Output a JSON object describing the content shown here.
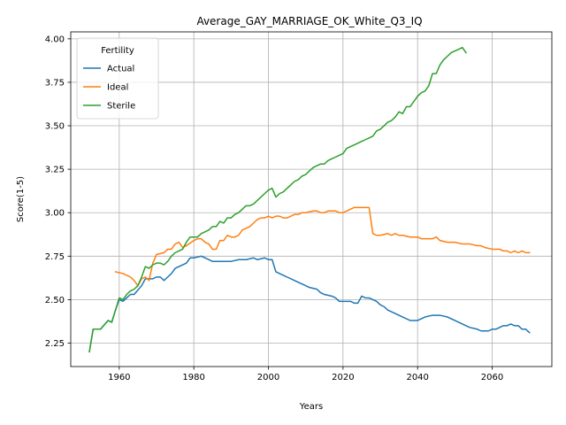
{
  "chart_data": {
    "type": "line",
    "title": "Average_GAY_MARRIAGE_OK_White_Q3_IQ",
    "xlabel": "Years",
    "ylabel": "Score(1-5)",
    "xlim": [
      1947,
      2076
    ],
    "ylim": [
      2.115,
      4.04
    ],
    "xticks": [
      1960,
      1980,
      2000,
      2020,
      2040,
      2060
    ],
    "yticks": [
      2.25,
      2.5,
      2.75,
      3.0,
      3.25,
      3.5,
      3.75,
      4.0
    ],
    "xtick_labels": [
      "1960",
      "1980",
      "2000",
      "2020",
      "2040",
      "2060"
    ],
    "ytick_labels": [
      "2.25",
      "2.50",
      "2.75",
      "3.00",
      "3.25",
      "3.50",
      "3.75",
      "4.00"
    ],
    "grid": true,
    "legend": {
      "title": "Fertility",
      "placement": "top-left"
    },
    "series": [
      {
        "name": "Actual",
        "color": "#1f77b4",
        "points": [
          [
            1952,
            2.2
          ],
          [
            1953,
            2.33
          ],
          [
            1955,
            2.33
          ],
          [
            1957,
            2.38
          ],
          [
            1958,
            2.37
          ],
          [
            1959,
            2.44
          ],
          [
            1960,
            2.5
          ],
          [
            1961,
            2.49
          ],
          [
            1962,
            2.51
          ],
          [
            1963,
            2.53
          ],
          [
            1964,
            2.53
          ],
          [
            1966,
            2.58
          ],
          [
            1967,
            2.62
          ],
          [
            1968,
            2.62
          ],
          [
            1969,
            2.62
          ],
          [
            1970,
            2.63
          ],
          [
            1971,
            2.63
          ],
          [
            1972,
            2.61
          ],
          [
            1973,
            2.63
          ],
          [
            1974,
            2.65
          ],
          [
            1975,
            2.68
          ],
          [
            1976,
            2.69
          ],
          [
            1978,
            2.71
          ],
          [
            1979,
            2.74
          ],
          [
            1980,
            2.74
          ],
          [
            1982,
            2.75
          ],
          [
            1984,
            2.73
          ],
          [
            1985,
            2.72
          ],
          [
            1987,
            2.72
          ],
          [
            1989,
            2.72
          ],
          [
            1990,
            2.72
          ],
          [
            1992,
            2.73
          ],
          [
            1994,
            2.73
          ],
          [
            1996,
            2.74
          ],
          [
            1997,
            2.73
          ],
          [
            1999,
            2.74
          ],
          [
            2000,
            2.73
          ],
          [
            2001,
            2.73
          ],
          [
            2002,
            2.66
          ],
          [
            2003,
            2.65
          ],
          [
            2004,
            2.64
          ],
          [
            2005,
            2.63
          ],
          [
            2007,
            2.61
          ],
          [
            2008,
            2.6
          ],
          [
            2009,
            2.59
          ],
          [
            2011,
            2.57
          ],
          [
            2013,
            2.56
          ],
          [
            2014,
            2.54
          ],
          [
            2015,
            2.53
          ],
          [
            2017,
            2.52
          ],
          [
            2018,
            2.51
          ],
          [
            2019,
            2.49
          ],
          [
            2021,
            2.49
          ],
          [
            2022,
            2.49
          ],
          [
            2023,
            2.48
          ],
          [
            2024,
            2.48
          ],
          [
            2025,
            2.52
          ],
          [
            2026,
            2.51
          ],
          [
            2027,
            2.51
          ],
          [
            2029,
            2.49
          ],
          [
            2030,
            2.47
          ],
          [
            2031,
            2.46
          ],
          [
            2032,
            2.44
          ],
          [
            2034,
            2.42
          ],
          [
            2035,
            2.41
          ],
          [
            2036,
            2.4
          ],
          [
            2037,
            2.39
          ],
          [
            2038,
            2.38
          ],
          [
            2040,
            2.38
          ],
          [
            2042,
            2.4
          ],
          [
            2044,
            2.41
          ],
          [
            2046,
            2.41
          ],
          [
            2048,
            2.4
          ],
          [
            2050,
            2.38
          ],
          [
            2052,
            2.36
          ],
          [
            2054,
            2.34
          ],
          [
            2056,
            2.33
          ],
          [
            2057,
            2.32
          ],
          [
            2059,
            2.32
          ],
          [
            2060,
            2.33
          ],
          [
            2061,
            2.33
          ],
          [
            2062,
            2.34
          ],
          [
            2063,
            2.35
          ],
          [
            2064,
            2.35
          ],
          [
            2065,
            2.36
          ],
          [
            2066,
            2.35
          ],
          [
            2067,
            2.35
          ],
          [
            2068,
            2.33
          ],
          [
            2069,
            2.33
          ],
          [
            2070,
            2.31
          ]
        ]
      },
      {
        "name": "Ideal",
        "color": "#ff7f0e",
        "points": [
          [
            1959,
            2.66
          ],
          [
            1961,
            2.65
          ],
          [
            1963,
            2.63
          ],
          [
            1964,
            2.61
          ],
          [
            1965,
            2.58
          ],
          [
            1966,
            2.62
          ],
          [
            1967,
            2.63
          ],
          [
            1968,
            2.61
          ],
          [
            1969,
            2.71
          ],
          [
            1970,
            2.76
          ],
          [
            1972,
            2.77
          ],
          [
            1973,
            2.79
          ],
          [
            1974,
            2.79
          ],
          [
            1975,
            2.82
          ],
          [
            1976,
            2.83
          ],
          [
            1977,
            2.8
          ],
          [
            1978,
            2.81
          ],
          [
            1980,
            2.84
          ],
          [
            1981,
            2.85
          ],
          [
            1982,
            2.85
          ],
          [
            1983,
            2.83
          ],
          [
            1984,
            2.82
          ],
          [
            1985,
            2.79
          ],
          [
            1986,
            2.79
          ],
          [
            1987,
            2.84
          ],
          [
            1988,
            2.84
          ],
          [
            1989,
            2.87
          ],
          [
            1990,
            2.86
          ],
          [
            1991,
            2.86
          ],
          [
            1992,
            2.87
          ],
          [
            1993,
            2.9
          ],
          [
            1995,
            2.92
          ],
          [
            1996,
            2.94
          ],
          [
            1997,
            2.96
          ],
          [
            1998,
            2.97
          ],
          [
            1999,
            2.97
          ],
          [
            2000,
            2.98
          ],
          [
            2001,
            2.97
          ],
          [
            2002,
            2.98
          ],
          [
            2003,
            2.98
          ],
          [
            2004,
            2.97
          ],
          [
            2005,
            2.97
          ],
          [
            2006,
            2.98
          ],
          [
            2007,
            2.99
          ],
          [
            2008,
            2.99
          ],
          [
            2009,
            3.0
          ],
          [
            2010,
            3.0
          ],
          [
            2012,
            3.01
          ],
          [
            2013,
            3.01
          ],
          [
            2014,
            3.0
          ],
          [
            2015,
            3.0
          ],
          [
            2016,
            3.01
          ],
          [
            2018,
            3.01
          ],
          [
            2019,
            3.0
          ],
          [
            2020,
            3.0
          ],
          [
            2021,
            3.01
          ],
          [
            2022,
            3.02
          ],
          [
            2023,
            3.03
          ],
          [
            2024,
            3.03
          ],
          [
            2025,
            3.03
          ],
          [
            2027,
            3.03
          ],
          [
            2028,
            2.88
          ],
          [
            2029,
            2.87
          ],
          [
            2030,
            2.87
          ],
          [
            2032,
            2.88
          ],
          [
            2033,
            2.87
          ],
          [
            2034,
            2.88
          ],
          [
            2035,
            2.87
          ],
          [
            2036,
            2.87
          ],
          [
            2038,
            2.86
          ],
          [
            2040,
            2.86
          ],
          [
            2041,
            2.85
          ],
          [
            2042,
            2.85
          ],
          [
            2044,
            2.85
          ],
          [
            2045,
            2.86
          ],
          [
            2046,
            2.84
          ],
          [
            2048,
            2.83
          ],
          [
            2050,
            2.83
          ],
          [
            2052,
            2.82
          ],
          [
            2054,
            2.82
          ],
          [
            2056,
            2.81
          ],
          [
            2057,
            2.81
          ],
          [
            2058,
            2.8
          ],
          [
            2060,
            2.79
          ],
          [
            2062,
            2.79
          ],
          [
            2063,
            2.78
          ],
          [
            2064,
            2.78
          ],
          [
            2065,
            2.77
          ],
          [
            2066,
            2.78
          ],
          [
            2067,
            2.77
          ],
          [
            2068,
            2.78
          ],
          [
            2069,
            2.77
          ],
          [
            2070,
            2.77
          ]
        ]
      },
      {
        "name": "Sterile",
        "color": "#2ca02c",
        "points": [
          [
            1952,
            2.2
          ],
          [
            1953,
            2.33
          ],
          [
            1955,
            2.33
          ],
          [
            1957,
            2.38
          ],
          [
            1958,
            2.37
          ],
          [
            1959,
            2.44
          ],
          [
            1960,
            2.51
          ],
          [
            1961,
            2.5
          ],
          [
            1962,
            2.53
          ],
          [
            1963,
            2.55
          ],
          [
            1964,
            2.56
          ],
          [
            1965,
            2.58
          ],
          [
            1966,
            2.63
          ],
          [
            1967,
            2.69
          ],
          [
            1968,
            2.68
          ],
          [
            1969,
            2.7
          ],
          [
            1970,
            2.71
          ],
          [
            1971,
            2.71
          ],
          [
            1972,
            2.7
          ],
          [
            1973,
            2.72
          ],
          [
            1974,
            2.75
          ],
          [
            1975,
            2.77
          ],
          [
            1976,
            2.78
          ],
          [
            1977,
            2.79
          ],
          [
            1978,
            2.83
          ],
          [
            1979,
            2.86
          ],
          [
            1981,
            2.86
          ],
          [
            1982,
            2.88
          ],
          [
            1983,
            2.89
          ],
          [
            1984,
            2.9
          ],
          [
            1985,
            2.92
          ],
          [
            1986,
            2.92
          ],
          [
            1987,
            2.95
          ],
          [
            1988,
            2.94
          ],
          [
            1989,
            2.97
          ],
          [
            1990,
            2.97
          ],
          [
            1991,
            2.99
          ],
          [
            1992,
            3.0
          ],
          [
            1993,
            3.02
          ],
          [
            1994,
            3.04
          ],
          [
            1995,
            3.04
          ],
          [
            1996,
            3.05
          ],
          [
            1997,
            3.07
          ],
          [
            1998,
            3.09
          ],
          [
            1999,
            3.11
          ],
          [
            2000,
            3.13
          ],
          [
            2001,
            3.14
          ],
          [
            2002,
            3.09
          ],
          [
            2003,
            3.11
          ],
          [
            2004,
            3.12
          ],
          [
            2005,
            3.14
          ],
          [
            2006,
            3.16
          ],
          [
            2007,
            3.18
          ],
          [
            2008,
            3.19
          ],
          [
            2009,
            3.21
          ],
          [
            2010,
            3.22
          ],
          [
            2011,
            3.24
          ],
          [
            2012,
            3.26
          ],
          [
            2013,
            3.27
          ],
          [
            2014,
            3.28
          ],
          [
            2015,
            3.28
          ],
          [
            2016,
            3.3
          ],
          [
            2017,
            3.31
          ],
          [
            2018,
            3.32
          ],
          [
            2019,
            3.33
          ],
          [
            2020,
            3.34
          ],
          [
            2021,
            3.37
          ],
          [
            2022,
            3.38
          ],
          [
            2023,
            3.39
          ],
          [
            2024,
            3.4
          ],
          [
            2025,
            3.41
          ],
          [
            2026,
            3.42
          ],
          [
            2027,
            3.43
          ],
          [
            2028,
            3.44
          ],
          [
            2029,
            3.47
          ],
          [
            2030,
            3.48
          ],
          [
            2031,
            3.5
          ],
          [
            2032,
            3.52
          ],
          [
            2033,
            3.53
          ],
          [
            2034,
            3.55
          ],
          [
            2035,
            3.58
          ],
          [
            2036,
            3.57
          ],
          [
            2037,
            3.61
          ],
          [
            2038,
            3.61
          ],
          [
            2039,
            3.64
          ],
          [
            2040,
            3.67
          ],
          [
            2041,
            3.69
          ],
          [
            2042,
            3.7
          ],
          [
            2043,
            3.73
          ],
          [
            2044,
            3.8
          ],
          [
            2045,
            3.8
          ],
          [
            2046,
            3.85
          ],
          [
            2047,
            3.88
          ],
          [
            2048,
            3.9
          ],
          [
            2049,
            3.92
          ],
          [
            2050,
            3.93
          ],
          [
            2051,
            3.94
          ],
          [
            2052,
            3.95
          ],
          [
            2053,
            3.92
          ]
        ]
      }
    ]
  }
}
